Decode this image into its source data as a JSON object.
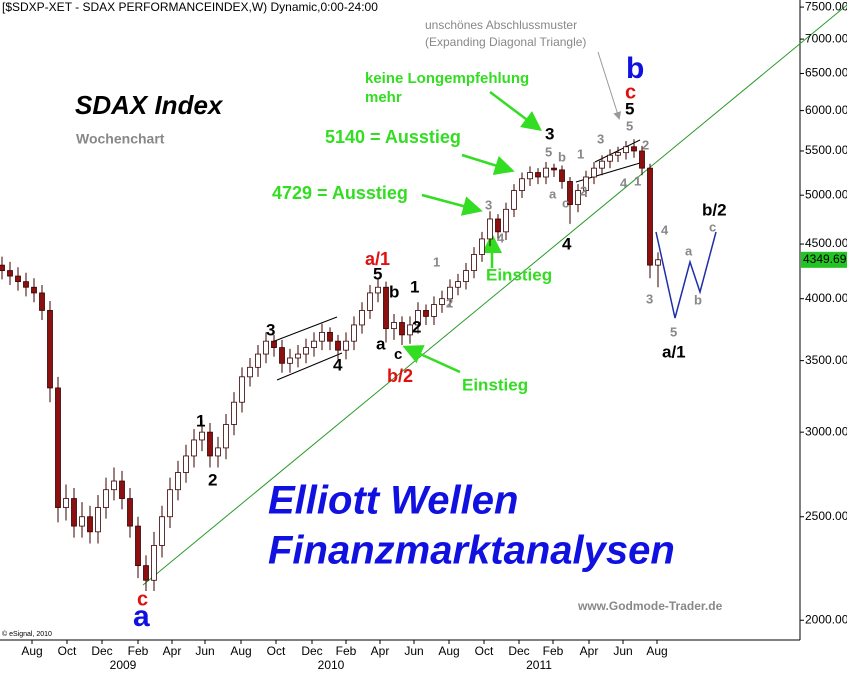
{
  "chart_data": {
    "type": "candlestick",
    "title": "[$SDXP-XET - SDAX PERFORMANCEINDEX,W) Dynamic,0:00-24:00",
    "log_scale": true,
    "up_color": "#ffffff",
    "down_color": "#8b1010",
    "outline_color": "#3a0000",
    "xlim": [
      -0.25,
      99.75
    ],
    "ylim": [
      1950,
      7550
    ],
    "yticks": [
      {
        "value": 2000,
        "label": "2000.00"
      },
      {
        "value": 2500,
        "label": "2500.00"
      },
      {
        "value": 3000,
        "label": "3000.00"
      },
      {
        "value": 3500,
        "label": "3500.00"
      },
      {
        "value": 4000,
        "label": "4000.00"
      },
      {
        "value": 4500,
        "label": "4500.00"
      },
      {
        "value": 5000,
        "label": "5000.00"
      },
      {
        "value": 5500,
        "label": "5500.00"
      },
      {
        "value": 6000,
        "label": "6000.00"
      },
      {
        "value": 6500,
        "label": "6500.00"
      },
      {
        "value": 7000,
        "label": "7000.00"
      },
      {
        "value": 7500,
        "label": "7500.00"
      }
    ],
    "xticks": [
      {
        "value": 3.75,
        "label": "Aug"
      },
      {
        "value": 8.125,
        "label": "Oct"
      },
      {
        "value": 12.5,
        "label": "Dec"
      },
      {
        "value": 17,
        "label": "Feb"
      },
      {
        "value": 21.25,
        "label": "Apr"
      },
      {
        "value": 25.375,
        "label": "Jun"
      },
      {
        "value": 29.875,
        "label": "Aug"
      },
      {
        "value": 34.25,
        "label": "Oct"
      },
      {
        "value": 38.75,
        "label": "Dec"
      },
      {
        "value": 43,
        "label": "Feb"
      },
      {
        "value": 47.25,
        "label": "Apr"
      },
      {
        "value": 51.5,
        "label": "Jun"
      },
      {
        "value": 55.875,
        "label": "Aug"
      },
      {
        "value": 60.25,
        "label": "Oct"
      },
      {
        "value": 64.625,
        "label": "Dec"
      },
      {
        "value": 68.875,
        "label": "Feb"
      },
      {
        "value": 73.375,
        "label": "Apr"
      },
      {
        "value": 77.625,
        "label": "Jun"
      },
      {
        "value": 81.875,
        "label": "Aug"
      }
    ],
    "years": [
      {
        "value": 15.125,
        "label": "2009"
      },
      {
        "value": 41.125,
        "label": "2010"
      },
      {
        "value": 67.125,
        "label": "2011"
      }
    ],
    "last_price": 4349.69,
    "open": [
      4300,
      4250,
      4200,
      4150,
      4100,
      4050,
      3900,
      3300,
      2550,
      2600,
      2450,
      2500,
      2420,
      2550,
      2650,
      2700,
      2600,
      2450,
      2250,
      2180,
      2350,
      2500,
      2650,
      2750,
      2850,
      2950,
      3000,
      2850,
      2900,
      3050,
      3200,
      3380,
      3450,
      3550,
      3650,
      3600,
      3480,
      3520,
      3550,
      3600,
      3650,
      3720,
      3650,
      3580,
      3650,
      3780,
      3900,
      4050,
      4100,
      3750,
      3800,
      3700,
      3780,
      3900,
      3850,
      3950,
      4000,
      4100,
      4150,
      4250,
      4400,
      4550,
      4750,
      4620,
      4850,
      5050,
      5180,
      5250,
      5200,
      5300,
      5280,
      5150,
      4900,
      5050,
      5200,
      5300,
      5380,
      5450,
      5480,
      5550,
      5500,
      5300,
      4300
    ],
    "high": [
      4380,
      4330,
      4280,
      4230,
      4180,
      4120,
      3980,
      3380,
      2680,
      2660,
      2580,
      2560,
      2620,
      2720,
      2780,
      2760,
      2660,
      2500,
      2300,
      2420,
      2560,
      2720,
      2820,
      2920,
      3020,
      3080,
      3060,
      2970,
      3120,
      3270,
      3450,
      3520,
      3620,
      3720,
      3700,
      3660,
      3590,
      3620,
      3670,
      3720,
      3790,
      3760,
      3700,
      3720,
      3850,
      3970,
      4120,
      4180,
      4150,
      3870,
      3850,
      3850,
      3970,
      3950,
      4020,
      4070,
      4170,
      4220,
      4320,
      4470,
      4620,
      4830,
      4800,
      4920,
      5120,
      5250,
      5320,
      5300,
      5370,
      5350,
      5330,
      5200,
      5120,
      5270,
      5370,
      5450,
      5520,
      5550,
      5620,
      5640,
      5560,
      5350,
      4420
    ],
    "low": [
      4170,
      4120,
      4070,
      4020,
      3970,
      3820,
      3200,
      2470,
      2480,
      2390,
      2390,
      2360,
      2360,
      2490,
      2590,
      2540,
      2390,
      2190,
      2130,
      2130,
      2290,
      2440,
      2590,
      2690,
      2780,
      2880,
      2780,
      2780,
      2830,
      2980,
      3130,
      3310,
      3380,
      3480,
      3530,
      3410,
      3410,
      3450,
      3480,
      3530,
      3580,
      3580,
      3510,
      3510,
      3580,
      3710,
      3830,
      3970,
      3640,
      3660,
      3620,
      3630,
      3710,
      3780,
      3780,
      3880,
      3930,
      4030,
      4080,
      4180,
      4330,
      4480,
      4540,
      4540,
      4770,
      4970,
      5100,
      5120,
      5120,
      5200,
      5070,
      4700,
      4820,
      4980,
      5120,
      5220,
      5300,
      5370,
      5400,
      5420,
      5220,
      4180,
      4100
    ],
    "close": [
      4250,
      4200,
      4150,
      4100,
      4050,
      3900,
      3300,
      2550,
      2600,
      2450,
      2500,
      2420,
      2550,
      2650,
      2700,
      2600,
      2450,
      2250,
      2180,
      2350,
      2500,
      2650,
      2750,
      2850,
      2950,
      3000,
      2850,
      2900,
      3050,
      3200,
      3380,
      3450,
      3550,
      3650,
      3600,
      3480,
      3520,
      3550,
      3600,
      3650,
      3720,
      3650,
      3580,
      3650,
      3780,
      3900,
      4050,
      4100,
      3750,
      3800,
      3700,
      3780,
      3900,
      3850,
      3950,
      4000,
      4100,
      4150,
      4250,
      4400,
      4550,
      4750,
      4620,
      4850,
      5050,
      5180,
      5250,
      5200,
      5300,
      5280,
      5150,
      4900,
      5050,
      5200,
      5300,
      5380,
      5450,
      5480,
      5550,
      5500,
      5300,
      4300,
      4350
    ],
    "annotations": [
      "SDAX Index",
      "Wochenchart",
      "© eSignal, 2010",
      "www.Godmode-Trader.de",
      "Elliott Wellen",
      "Finanzmarktanalysen",
      "unschönes Abschlussmuster",
      "(Expanding Diagonal Triangle)",
      "keine Longempfehlung",
      "mehr",
      "5140 = Ausstieg",
      "4729 = Ausstieg",
      "Einstieg",
      "Einstieg",
      "1",
      "2",
      "3",
      "4",
      "5",
      "a",
      "b",
      "c",
      "1",
      "2",
      "3",
      "4",
      "5",
      "a/1",
      "b/2",
      "c",
      "a/1",
      "b/2",
      "c",
      "a",
      "b",
      "1",
      "2",
      "3",
      "4",
      "5",
      "b",
      "a",
      "c",
      "1",
      "2",
      "3",
      "4",
      "5",
      "1",
      "2",
      "3",
      "4",
      "5",
      "a",
      "b",
      "c"
    ]
  }
}
